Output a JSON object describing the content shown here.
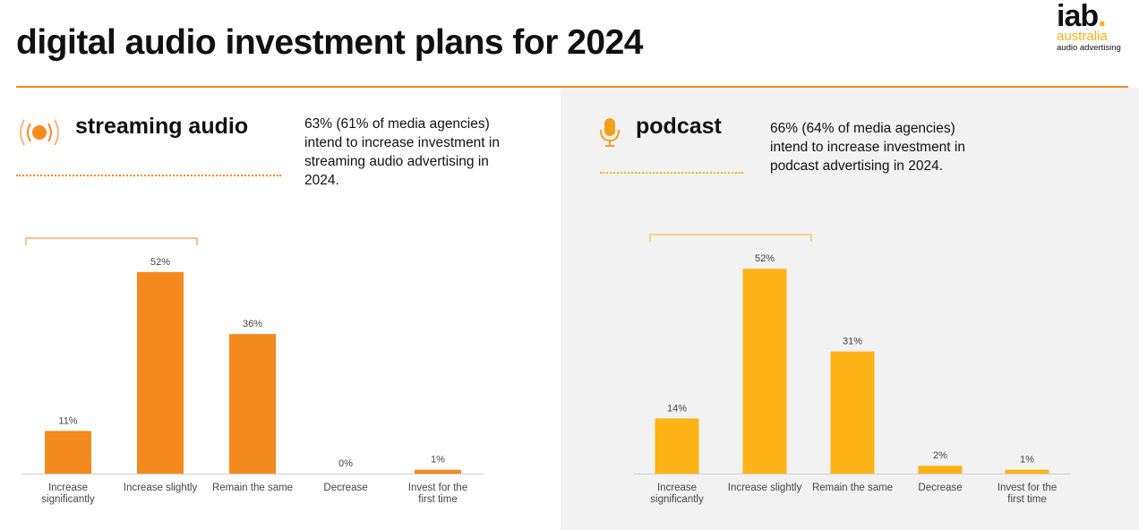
{
  "title": "digital audio investment plans for 2024",
  "logo": {
    "main": "iab",
    "dot": ".",
    "sub": "australia",
    "tag": "audio advertising"
  },
  "colors": {
    "accent": "#F58A1F",
    "podcast": "#FDB316",
    "panel": "#F2F2F2"
  },
  "sections": [
    {
      "title": "streaming audio",
      "icon": "radio-waves-icon",
      "description": "63% (61% of media agencies) intend to increase investment in streaming audio advertising in 2024."
    },
    {
      "title": "podcast",
      "icon": "microphone-icon",
      "description": "66% (64% of media agencies) intend to increase investment in podcast advertising in 2024."
    }
  ],
  "chart_data": [
    {
      "type": "bar",
      "title": "streaming audio",
      "categories": [
        "Increase significantly",
        "Increase slightly",
        "Remain the same",
        "Decrease",
        "Invest for the first time"
      ],
      "values": [
        11,
        52,
        36,
        0,
        1
      ],
      "labels": [
        "11%",
        "52%",
        "36%",
        "0%",
        "1%"
      ],
      "unit": "%",
      "color": "#F58A1F"
    },
    {
      "type": "bar",
      "title": "podcast",
      "categories": [
        "Increase significantly",
        "Increase slightly",
        "Remain the same",
        "Decrease",
        "Invest for the first time"
      ],
      "values": [
        14,
        52,
        31,
        2,
        1
      ],
      "labels": [
        "14%",
        "52%",
        "31%",
        "2%",
        "1%"
      ],
      "unit": "%",
      "color": "#FDB316"
    }
  ]
}
